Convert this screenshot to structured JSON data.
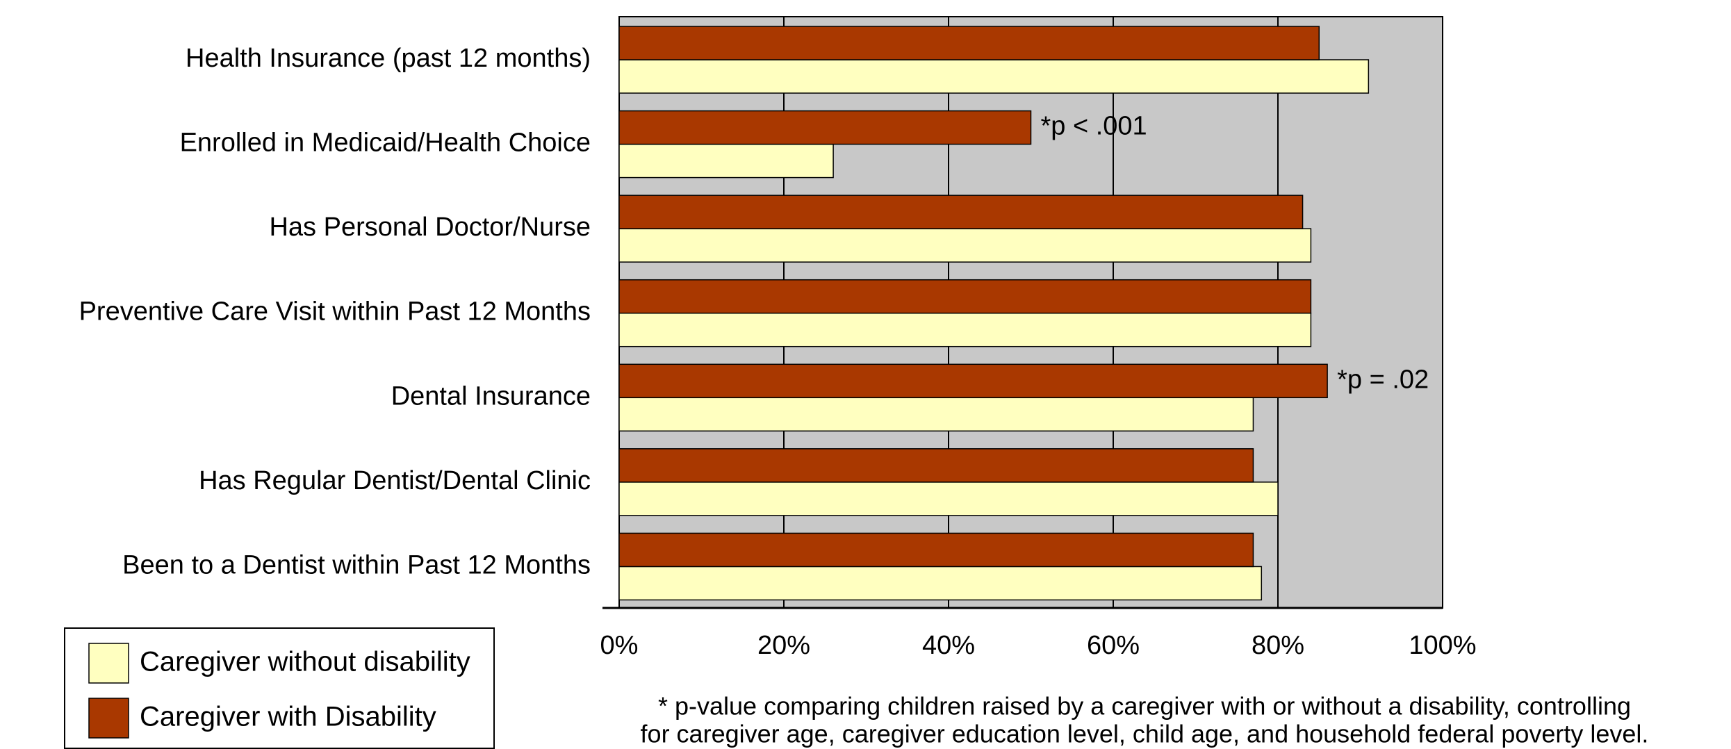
{
  "chart_data": {
    "type": "bar",
    "orientation": "horizontal",
    "categories": [
      "Health Insurance (past 12 months)",
      "Enrolled in Medicaid/Health Choice",
      "Has Personal Doctor/Nurse",
      "Preventive Care Visit within Past 12 Months",
      "Dental Insurance",
      "Has Regular Dentist/Dental Clinic",
      "Been to a Dentist within Past 12 Months"
    ],
    "series": [
      {
        "name": "Caregiver without disability",
        "color": "#ffffc0",
        "values": [
          91,
          26,
          84,
          84,
          77,
          80,
          78
        ]
      },
      {
        "name": "Caregiver with Disability",
        "color": "#a93800",
        "values": [
          85,
          50,
          83,
          84,
          86,
          77,
          77
        ]
      }
    ],
    "xlim": [
      0,
      100
    ],
    "xticks": [
      {
        "value": 0,
        "label": "0%"
      },
      {
        "value": 20,
        "label": "20%"
      },
      {
        "value": 40,
        "label": "40%"
      },
      {
        "value": 60,
        "label": "60%"
      },
      {
        "value": 80,
        "label": "80%"
      },
      {
        "value": 100,
        "label": "100%"
      }
    ],
    "grid": true,
    "plot_background": "#c8c8c8",
    "annotations": [
      {
        "category": 1,
        "series": 1,
        "text": "*p < .001"
      },
      {
        "category": 4,
        "series": 1,
        "text": "*p = .02"
      }
    ],
    "footnote": [
      "* p-value comparing children raised by a caregiver with or without a disability, controlling",
      "for caregiver age, caregiver education level, child age, and household federal poverty level."
    ]
  }
}
